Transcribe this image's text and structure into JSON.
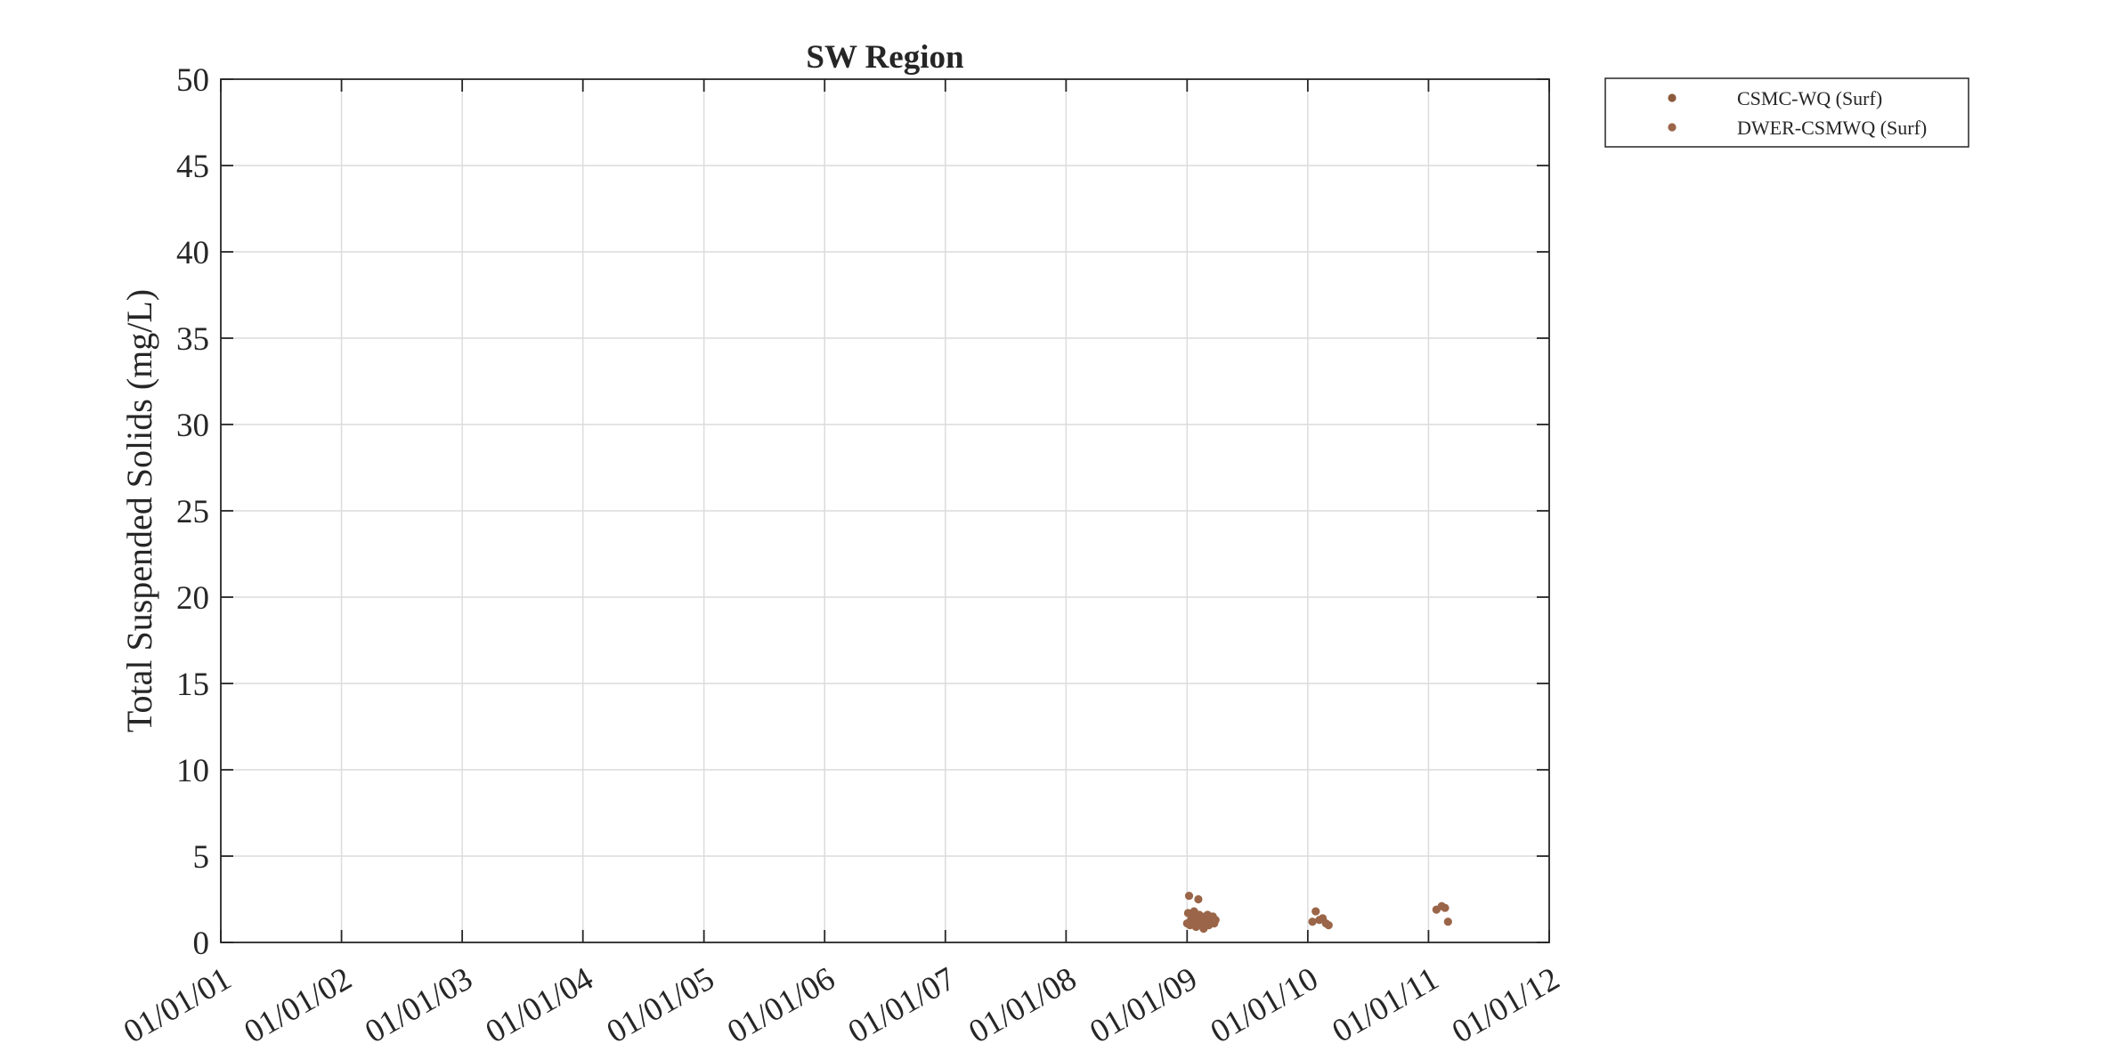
{
  "chart_data": {
    "type": "scatter",
    "title": "SW Region",
    "xlabel": "",
    "ylabel": "Total Suspended Solids (mg/L)",
    "x_ticks": [
      "01/01/01",
      "01/01/02",
      "01/01/03",
      "01/01/04",
      "01/01/05",
      "01/01/06",
      "01/01/07",
      "01/01/08",
      "01/01/09",
      "01/01/10",
      "01/01/11",
      "01/01/12"
    ],
    "y_ticks": [
      0,
      5,
      10,
      15,
      20,
      25,
      30,
      35,
      40,
      45,
      50
    ],
    "xlim": [
      "2001-01-01",
      "2012-01-01"
    ],
    "ylim": [
      0,
      50
    ],
    "grid": true,
    "legend_position": "outside-top-right",
    "series": [
      {
        "name": "CSMC-WQ (Surf)",
        "color": "#8c5a3c",
        "points": []
      },
      {
        "name": "DWER-CSMWQ (Surf)",
        "color": "#9a6548",
        "points": [
          {
            "x": "2009-01-01",
            "y": 1.1
          },
          {
            "x": "2009-01-04",
            "y": 1.7
          },
          {
            "x": "2009-01-07",
            "y": 2.7
          },
          {
            "x": "2009-01-10",
            "y": 1.0
          },
          {
            "x": "2009-01-13",
            "y": 1.3
          },
          {
            "x": "2009-01-16",
            "y": 1.5
          },
          {
            "x": "2009-01-19",
            "y": 1.2
          },
          {
            "x": "2009-01-22",
            "y": 1.8
          },
          {
            "x": "2009-01-25",
            "y": 1.4
          },
          {
            "x": "2009-01-28",
            "y": 0.9
          },
          {
            "x": "2009-02-01",
            "y": 1.3
          },
          {
            "x": "2009-02-04",
            "y": 2.5
          },
          {
            "x": "2009-02-07",
            "y": 1.6
          },
          {
            "x": "2009-02-10",
            "y": 1.1
          },
          {
            "x": "2009-02-13",
            "y": 1.4
          },
          {
            "x": "2009-02-16",
            "y": 1.2
          },
          {
            "x": "2009-02-20",
            "y": 0.8
          },
          {
            "x": "2009-02-24",
            "y": 1.5
          },
          {
            "x": "2009-02-28",
            "y": 1.3
          },
          {
            "x": "2009-03-04",
            "y": 1.6
          },
          {
            "x": "2009-03-08",
            "y": 1.0
          },
          {
            "x": "2009-03-12",
            "y": 1.2
          },
          {
            "x": "2009-03-16",
            "y": 1.4
          },
          {
            "x": "2009-03-20",
            "y": 1.5
          },
          {
            "x": "2009-03-24",
            "y": 1.1
          },
          {
            "x": "2009-03-28",
            "y": 1.3
          },
          {
            "x": "2010-01-15",
            "y": 1.2
          },
          {
            "x": "2010-01-25",
            "y": 1.8
          },
          {
            "x": "2010-02-05",
            "y": 1.3
          },
          {
            "x": "2010-02-15",
            "y": 1.4
          },
          {
            "x": "2010-02-25",
            "y": 1.1
          },
          {
            "x": "2010-03-05",
            "y": 1.0
          },
          {
            "x": "2011-01-25",
            "y": 1.9
          },
          {
            "x": "2011-02-10",
            "y": 2.1
          },
          {
            "x": "2011-02-20",
            "y": 2.0
          },
          {
            "x": "2011-03-01",
            "y": 1.2
          }
        ]
      }
    ]
  }
}
